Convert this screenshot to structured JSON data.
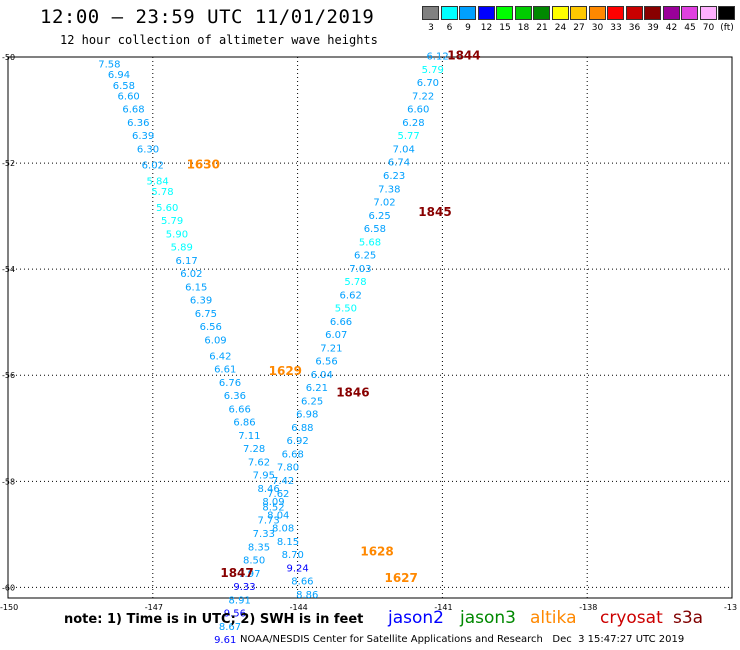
{
  "header": {
    "title": "12:00 – 23:59 UTC 11/01/2019",
    "subtitle": "12 hour collection of altimeter wave heights"
  },
  "legend": {
    "colors": [
      "#808080",
      "#00ffff",
      "#00a0ff",
      "#0000ff",
      "#00ff00",
      "#00cc00",
      "#008800",
      "#ffff00",
      "#ffc800",
      "#ff8800",
      "#ff0000",
      "#c80000",
      "#880000",
      "#9a009a",
      "#e040e0",
      "#ffb0ff",
      "#000000"
    ],
    "labels": [
      "3",
      "6",
      "9",
      "12",
      "15",
      "18",
      "21",
      "24",
      "27",
      "30",
      "33",
      "36",
      "39",
      "42",
      "45",
      "70",
      "(ft)"
    ]
  },
  "axes": {
    "lat_labels": [
      "-50",
      "-52",
      "-54",
      "-56",
      "-58",
      "-60"
    ],
    "lon_labels": [
      "-150",
      "-147",
      "-144",
      "-141",
      "-138",
      "-13"
    ]
  },
  "chart_data": {
    "type": "scatter",
    "units": "ft",
    "color_scale": {
      "thresholds": [
        3,
        6,
        9,
        12,
        15,
        18,
        21,
        24,
        27,
        30,
        33,
        36,
        39,
        42,
        45,
        70
      ],
      "colors": [
        "#808080",
        "#00ffff",
        "#00a0ff",
        "#0000ff",
        "#00ff00",
        "#00cc00",
        "#008800",
        "#ffff00",
        "#ffc800",
        "#ff8800",
        "#ff0000",
        "#c80000",
        "#880000",
        "#9a009a",
        "#e040e0",
        "#ffb0ff",
        "#000000"
      ]
    },
    "tracks": [
      {
        "points": [
          {
            "lon": -147.9,
            "lat": -50.2,
            "swh": "7.58"
          },
          {
            "lon": -147.7,
            "lat": -50.4,
            "swh": "6.94"
          },
          {
            "lon": -147.6,
            "lat": -50.6,
            "swh": "6.58"
          },
          {
            "lon": -147.5,
            "lat": -50.8,
            "swh": "6.60"
          },
          {
            "lon": -147.4,
            "lat": -51.05,
            "swh": "6.68"
          },
          {
            "lon": -147.3,
            "lat": -51.3,
            "swh": "6.36"
          },
          {
            "lon": -147.2,
            "lat": -51.55,
            "swh": "6.39"
          },
          {
            "lon": -147.1,
            "lat": -51.8,
            "swh": "6.30"
          },
          {
            "lon": -147.0,
            "lat": -52.1,
            "swh": "6.02"
          },
          {
            "lon": -146.9,
            "lat": -52.4,
            "swh": "5.84"
          },
          {
            "lon": -146.8,
            "lat": -52.6,
            "swh": "5.78"
          },
          {
            "lon": -146.7,
            "lat": -52.9,
            "swh": "5.60"
          },
          {
            "lon": -146.6,
            "lat": -53.15,
            "swh": "5.79"
          },
          {
            "lon": -146.5,
            "lat": -53.4,
            "swh": "5.90"
          },
          {
            "lon": -146.4,
            "lat": -53.65,
            "swh": "5.89"
          },
          {
            "lon": -146.3,
            "lat": -53.9,
            "swh": "6.17"
          },
          {
            "lon": -146.2,
            "lat": -54.15,
            "swh": "6.02"
          },
          {
            "lon": -146.1,
            "lat": -54.4,
            "swh": "6.15"
          },
          {
            "lon": -146.0,
            "lat": -54.65,
            "swh": "6.39"
          },
          {
            "lon": -145.9,
            "lat": -54.9,
            "swh": "6.75"
          },
          {
            "lon": -145.8,
            "lat": -55.15,
            "swh": "6.56"
          },
          {
            "lon": -145.7,
            "lat": -55.4,
            "swh": "6.09"
          },
          {
            "lon": -145.6,
            "lat": -55.7,
            "swh": "6.42"
          },
          {
            "lon": -145.5,
            "lat": -55.95,
            "swh": "6.61"
          },
          {
            "lon": -145.4,
            "lat": -56.2,
            "swh": "6.76"
          },
          {
            "lon": -145.3,
            "lat": -56.45,
            "swh": "6.36"
          },
          {
            "lon": -145.2,
            "lat": -56.7,
            "swh": "6.66"
          },
          {
            "lon": -145.1,
            "lat": -56.95,
            "swh": "6.86"
          },
          {
            "lon": -145.0,
            "lat": -57.2,
            "swh": "7.11"
          },
          {
            "lon": -144.9,
            "lat": -57.45,
            "swh": "7.28"
          },
          {
            "lon": -144.8,
            "lat": -57.7,
            "swh": "7.62"
          },
          {
            "lon": -144.7,
            "lat": -57.95,
            "swh": "7.95"
          },
          {
            "lon": -144.6,
            "lat": -58.2,
            "swh": "8.46"
          },
          {
            "lon": -144.5,
            "lat": -58.45,
            "swh": "8.09"
          },
          {
            "lon": -144.4,
            "lat": -58.7,
            "swh": "8.04"
          },
          {
            "lon": -144.3,
            "lat": -58.95,
            "swh": "8.08"
          },
          {
            "lon": -144.2,
            "lat": -59.2,
            "swh": "8.15"
          },
          {
            "lon": -144.1,
            "lat": -59.45,
            "swh": "8.70"
          },
          {
            "lon": -144.0,
            "lat": -59.7,
            "swh": "9.24"
          },
          {
            "lon": -143.9,
            "lat": -59.95,
            "swh": "8.66"
          },
          {
            "lon": -143.8,
            "lat": -60.2,
            "swh": "8.86"
          }
        ]
      },
      {
        "points": [
          {
            "lon": -141.1,
            "lat": -50.05,
            "swh": "6.12"
          },
          {
            "lon": -141.2,
            "lat": -50.3,
            "swh": "5.79"
          },
          {
            "lon": -141.3,
            "lat": -50.55,
            "swh": "6.70"
          },
          {
            "lon": -141.4,
            "lat": -50.8,
            "swh": "7.22"
          },
          {
            "lon": -141.5,
            "lat": -51.05,
            "swh": "6.60"
          },
          {
            "lon": -141.6,
            "lat": -51.3,
            "swh": "6.28"
          },
          {
            "lon": -141.7,
            "lat": -51.55,
            "swh": "5.77"
          },
          {
            "lon": -141.8,
            "lat": -51.8,
            "swh": "7.04"
          },
          {
            "lon": -141.9,
            "lat": -52.05,
            "swh": "6.74"
          },
          {
            "lon": -142.0,
            "lat": -52.3,
            "swh": "6.23"
          },
          {
            "lon": -142.1,
            "lat": -52.55,
            "swh": "7.38"
          },
          {
            "lon": -142.2,
            "lat": -52.8,
            "swh": "7.02"
          },
          {
            "lon": -142.3,
            "lat": -53.05,
            "swh": "6.25"
          },
          {
            "lon": -142.4,
            "lat": -53.3,
            "swh": "6.58"
          },
          {
            "lon": -142.5,
            "lat": -53.55,
            "swh": "5.68"
          },
          {
            "lon": -142.6,
            "lat": -53.8,
            "swh": "6.25"
          },
          {
            "lon": -142.7,
            "lat": -54.05,
            "swh": "7.03"
          },
          {
            "lon": -142.8,
            "lat": -54.3,
            "swh": "5.78"
          },
          {
            "lon": -142.9,
            "lat": -54.55,
            "swh": "6.62"
          },
          {
            "lon": -143.0,
            "lat": -54.8,
            "swh": "5.50"
          },
          {
            "lon": -143.1,
            "lat": -55.05,
            "swh": "6.66"
          },
          {
            "lon": -143.2,
            "lat": -55.3,
            "swh": "6.07"
          },
          {
            "lon": -143.3,
            "lat": -55.55,
            "swh": "7.21"
          },
          {
            "lon": -143.4,
            "lat": -55.8,
            "swh": "6.56"
          },
          {
            "lon": -143.5,
            "lat": -56.05,
            "swh": "6.04"
          },
          {
            "lon": -143.6,
            "lat": -56.3,
            "swh": "6.21"
          },
          {
            "lon": -143.7,
            "lat": -56.55,
            "swh": "6.25"
          },
          {
            "lon": -143.8,
            "lat": -56.8,
            "swh": "6.98"
          },
          {
            "lon": -143.9,
            "lat": -57.05,
            "swh": "6.88"
          },
          {
            "lon": -144.0,
            "lat": -57.3,
            "swh": "6.92"
          },
          {
            "lon": -144.1,
            "lat": -57.55,
            "swh": "6.68"
          },
          {
            "lon": -144.2,
            "lat": -57.8,
            "swh": "7.80"
          },
          {
            "lon": -144.3,
            "lat": -58.05,
            "swh": "7.42"
          },
          {
            "lon": -144.4,
            "lat": -58.3,
            "swh": "7.62"
          },
          {
            "lon": -144.5,
            "lat": -58.55,
            "swh": "8.52"
          },
          {
            "lon": -144.6,
            "lat": -58.8,
            "swh": "7.73"
          },
          {
            "lon": -144.7,
            "lat": -59.05,
            "swh": "7.33"
          },
          {
            "lon": -144.8,
            "lat": -59.3,
            "swh": "8.35"
          },
          {
            "lon": -144.9,
            "lat": -59.55,
            "swh": "8.50"
          },
          {
            "lon": -145.0,
            "lat": -59.8,
            "swh": "7.97"
          },
          {
            "lon": -145.1,
            "lat": -60.05,
            "swh": "9.33"
          },
          {
            "lon": -145.2,
            "lat": -60.3,
            "swh": "8.91"
          },
          {
            "lon": -145.3,
            "lat": -60.55,
            "swh": "9.56"
          },
          {
            "lon": -145.4,
            "lat": -60.8,
            "swh": "8.67"
          },
          {
            "lon": -145.5,
            "lat": -61.05,
            "swh": "9.61"
          }
        ]
      }
    ],
    "time_labels": [
      {
        "text": "1844",
        "lon": -140.9,
        "lat": -50.05,
        "color": "#880000"
      },
      {
        "text": "1630",
        "lon": -146.3,
        "lat": -52.1,
        "color": "#ff8800"
      },
      {
        "text": "1845",
        "lon": -141.5,
        "lat": -53.0,
        "color": "#880000"
      },
      {
        "text": "1629",
        "lon": -144.6,
        "lat": -56.0,
        "color": "#ff8800"
      },
      {
        "text": "1846",
        "lon": -143.2,
        "lat": -56.4,
        "color": "#880000"
      },
      {
        "text": "1628",
        "lon": -142.7,
        "lat": -59.4,
        "color": "#ff8800"
      },
      {
        "text": "1847",
        "lon": -145.6,
        "lat": -59.8,
        "color": "#880000"
      },
      {
        "text": "1627",
        "lon": -142.2,
        "lat": -59.9,
        "color": "#ff8800"
      }
    ]
  },
  "note": {
    "text": "note: 1) Time is in UTC; 2) SWH is in feet",
    "satellites": [
      {
        "name": "jason2",
        "color": "#0000ff"
      },
      {
        "name": "jason3",
        "color": "#008800"
      },
      {
        "name": "altika",
        "color": "#ff8800"
      },
      {
        "name": "cryosat",
        "color": "#cc0000"
      },
      {
        "name": "s3a",
        "color": "#800000"
      }
    ]
  },
  "footer": "NOAA/NESDIS Center for Satellite Applications and Research   Dec  3 15:47:27 UTC 2019"
}
